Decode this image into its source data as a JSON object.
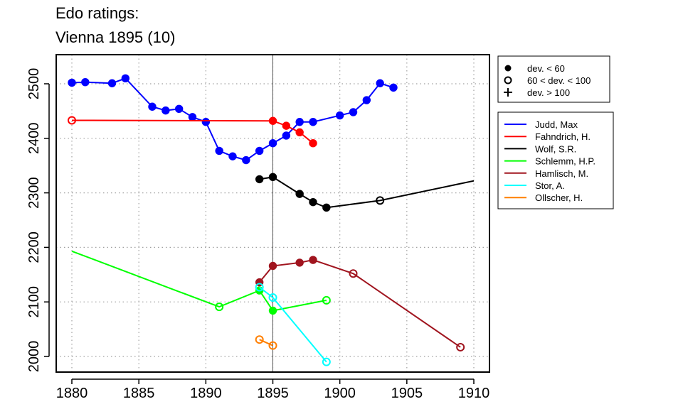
{
  "chart_data": {
    "type": "line",
    "title": "Edo ratings:",
    "subtitle": "Vienna 1895 (10)",
    "xlim": [
      1880,
      1910
    ],
    "ylim": [
      1980,
      2550
    ],
    "xticks": [
      "1880",
      "1885",
      "1890",
      "1895",
      "1900",
      "1905",
      "1910"
    ],
    "yticks": [
      "2000",
      "2100",
      "2200",
      "2300",
      "2400",
      "2500"
    ],
    "grid": true,
    "event_year": 1895,
    "symbol_legend": [
      {
        "label": "dev. < 60",
        "symbol": "filled-circle"
      },
      {
        "label": "60 < dev. < 100",
        "symbol": "open-circle"
      },
      {
        "label": "dev. > 100",
        "symbol": "plus"
      }
    ],
    "series": [
      {
        "name": "Judd, Max",
        "color": "#0000ff",
        "points": [
          {
            "x": 1880,
            "y": 2502,
            "m": "f"
          },
          {
            "x": 1881,
            "y": 2503,
            "m": "f"
          },
          {
            "x": 1883,
            "y": 2501,
            "m": "f"
          },
          {
            "x": 1884,
            "y": 2510,
            "m": "f"
          },
          {
            "x": 1886,
            "y": 2458,
            "m": "f"
          },
          {
            "x": 1887,
            "y": 2451,
            "m": "f"
          },
          {
            "x": 1888,
            "y": 2454,
            "m": "f"
          },
          {
            "x": 1889,
            "y": 2439,
            "m": "f"
          },
          {
            "x": 1890,
            "y": 2430,
            "m": "f"
          },
          {
            "x": 1891,
            "y": 2377,
            "m": "f"
          },
          {
            "x": 1892,
            "y": 2367,
            "m": "f"
          },
          {
            "x": 1893,
            "y": 2360,
            "m": "f"
          },
          {
            "x": 1894,
            "y": 2377,
            "m": "f"
          },
          {
            "x": 1895,
            "y": 2391,
            "m": "f"
          },
          {
            "x": 1896,
            "y": 2405,
            "m": "f"
          },
          {
            "x": 1897,
            "y": 2430,
            "m": "f"
          },
          {
            "x": 1898,
            "y": 2430,
            "m": "f"
          },
          {
            "x": 1900,
            "y": 2442,
            "m": "f"
          },
          {
            "x": 1901,
            "y": 2448,
            "m": "f"
          },
          {
            "x": 1902,
            "y": 2470,
            "m": "f"
          },
          {
            "x": 1903,
            "y": 2501,
            "m": "f"
          },
          {
            "x": 1904,
            "y": 2493,
            "m": "f"
          }
        ]
      },
      {
        "name": "Fahndrich, H.",
        "color": "#ff0000",
        "points": [
          {
            "x": 1880,
            "y": 2433,
            "m": "o"
          },
          {
            "x": 1895,
            "y": 2432,
            "m": "f"
          },
          {
            "x": 1896,
            "y": 2423,
            "m": "f"
          },
          {
            "x": 1897,
            "y": 2411,
            "m": "f"
          },
          {
            "x": 1898,
            "y": 2391,
            "m": "f"
          }
        ]
      },
      {
        "name": "Wolf, S.R.",
        "color": "#000000",
        "points": [
          {
            "x": 1894,
            "y": 2325,
            "m": "f"
          },
          {
            "x": 1895,
            "y": 2329,
            "m": "f"
          },
          {
            "x": 1897,
            "y": 2298,
            "m": "f"
          },
          {
            "x": 1898,
            "y": 2283,
            "m": "f"
          },
          {
            "x": 1899,
            "y": 2273,
            "m": "f"
          },
          {
            "x": 1903,
            "y": 2286,
            "m": "o"
          },
          {
            "x": 1910,
            "y": 2322,
            "m": "n"
          }
        ]
      },
      {
        "name": "Schlemm, H.P.",
        "color": "#00ff00",
        "points": [
          {
            "x": 1880,
            "y": 2193,
            "m": "n"
          },
          {
            "x": 1891,
            "y": 2091,
            "m": "o"
          },
          {
            "x": 1894,
            "y": 2121,
            "m": "f"
          },
          {
            "x": 1895,
            "y": 2084,
            "m": "f"
          },
          {
            "x": 1899,
            "y": 2103,
            "m": "o"
          }
        ]
      },
      {
        "name": "Hamlisch, M.",
        "color": "#a0141e",
        "points": [
          {
            "x": 1894,
            "y": 2136,
            "m": "f"
          },
          {
            "x": 1895,
            "y": 2166,
            "m": "f"
          },
          {
            "x": 1897,
            "y": 2172,
            "m": "f"
          },
          {
            "x": 1898,
            "y": 2177,
            "m": "f"
          },
          {
            "x": 1901,
            "y": 2152,
            "m": "o"
          },
          {
            "x": 1909,
            "y": 2017,
            "m": "o"
          }
        ]
      },
      {
        "name": "Stor, A.",
        "color": "#00ffff",
        "points": [
          {
            "x": 1894,
            "y": 2127,
            "m": "o"
          },
          {
            "x": 1895,
            "y": 2108,
            "m": "o"
          },
          {
            "x": 1899,
            "y": 1990,
            "m": "o"
          }
        ]
      },
      {
        "name": "Ollscher, H.",
        "color": "#ff7f00",
        "points": [
          {
            "x": 1894,
            "y": 2031,
            "m": "o"
          },
          {
            "x": 1895,
            "y": 2020,
            "m": "o"
          }
        ]
      }
    ]
  }
}
